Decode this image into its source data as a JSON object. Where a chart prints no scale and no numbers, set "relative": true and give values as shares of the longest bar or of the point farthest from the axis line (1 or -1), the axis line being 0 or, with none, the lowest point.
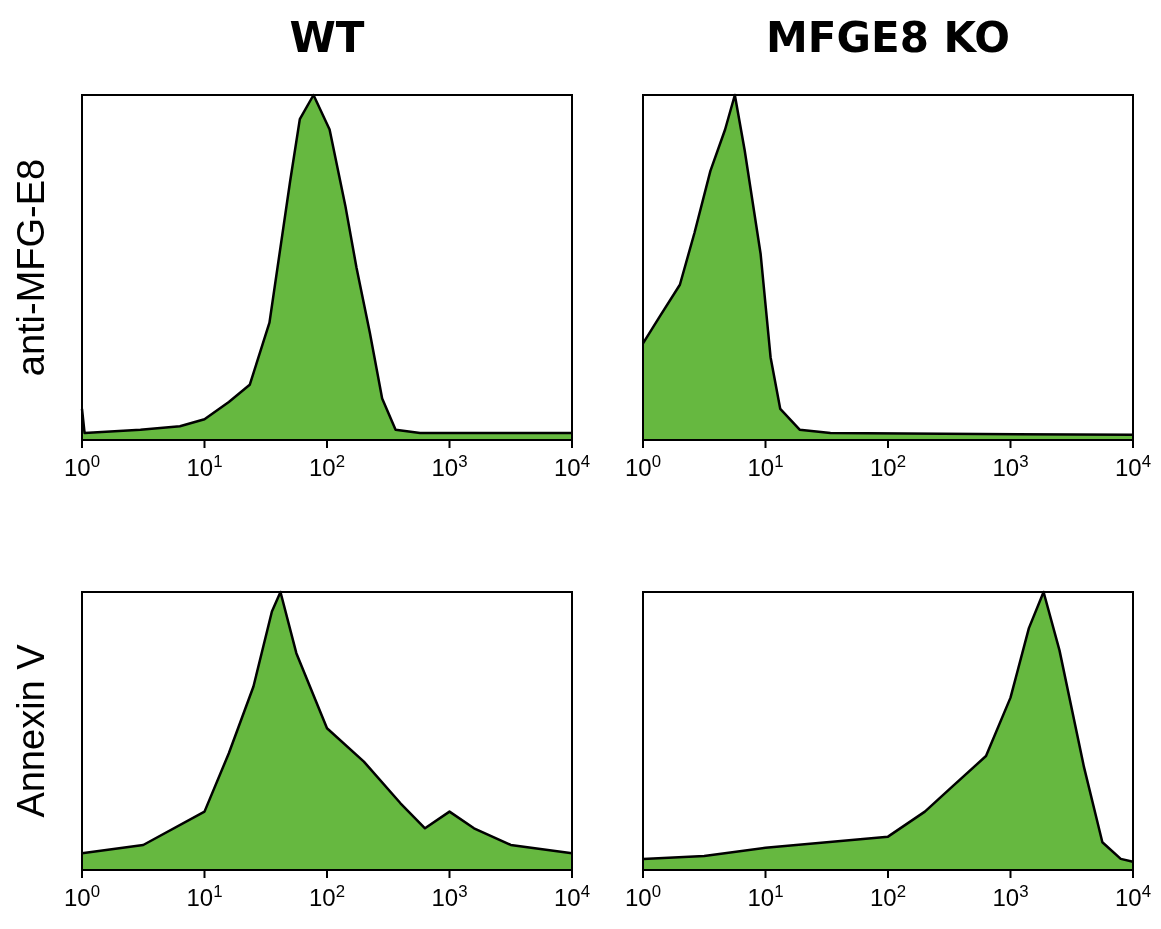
{
  "chart_data": [
    {
      "type": "area",
      "title": "WT",
      "ylabel": "anti-MFG-E8",
      "relative": true,
      "log": "x",
      "tick_labels": "x",
      "xlim": [
        1,
        10000
      ],
      "xticks": [
        {
          "value": 1,
          "label": "10$^{0}$"
        },
        {
          "value": 10,
          "label": "10$^{1}$"
        },
        {
          "value": 100,
          "label": "10$^{2}$"
        },
        {
          "value": 1000,
          "label": "10$^{3}$"
        },
        {
          "value": 10000,
          "label": "10$^{4}$"
        }
      ],
      "series": [
        {
          "color": "#66b840",
          "x": [
            1,
            1.05,
            3,
            6.3,
            10,
            15.8,
            23.4,
            33.9,
            50,
            60,
            77.6,
            105,
            141,
            174,
            224,
            282,
            363,
            575,
            10000
          ],
          "values": [
            0.09,
            0.02,
            0.03,
            0.04,
            0.06,
            0.11,
            0.16,
            0.34,
            0.75,
            0.93,
            1,
            0.9,
            0.68,
            0.5,
            0.31,
            0.12,
            0.03,
            0.02,
            0.02
          ]
        }
      ]
    },
    {
      "type": "area",
      "title": "MFGE8 KO",
      "relative": true,
      "log": "x",
      "tick_labels": "x",
      "xlim": [
        1,
        10000
      ],
      "xticks": [
        {
          "value": 1,
          "label": "10$^{0}$"
        },
        {
          "value": 10,
          "label": "10$^{1}$"
        },
        {
          "value": 100,
          "label": "10$^{2}$"
        },
        {
          "value": 1000,
          "label": "10$^{3}$"
        },
        {
          "value": 10000,
          "label": "10$^{4}$"
        }
      ],
      "series": [
        {
          "color": "#66b840",
          "x": [
            1,
            1.38,
            2,
            2.63,
            3.55,
            4.68,
            5.62,
            6.76,
            9.12,
            11,
            13.2,
            19,
            33.9,
            10000
          ],
          "values": [
            0.28,
            0.36,
            0.45,
            0.6,
            0.78,
            0.9,
            1,
            0.84,
            0.54,
            0.24,
            0.09,
            0.03,
            0.02,
            0.015
          ]
        }
      ]
    },
    {
      "type": "area",
      "ylabel": "Annexin V",
      "relative": true,
      "log": "x",
      "tick_labels": "x",
      "xlim": [
        1,
        10000
      ],
      "xticks": [
        {
          "value": 1,
          "label": "10$^{0}$"
        },
        {
          "value": 10,
          "label": "10$^{1}$"
        },
        {
          "value": 100,
          "label": "10$^{2}$"
        },
        {
          "value": 1000,
          "label": "10$^{3}$"
        },
        {
          "value": 10000,
          "label": "10$^{4}$"
        }
      ],
      "series": [
        {
          "color": "#66b840",
          "x": [
            1,
            3.16,
            10,
            15.8,
            25.1,
            35.5,
            41.7,
            56.2,
            100,
            200,
            398,
            631,
            1000,
            1585,
            3162,
            10000
          ],
          "values": [
            0.06,
            0.09,
            0.21,
            0.42,
            0.66,
            0.93,
            1,
            0.78,
            0.51,
            0.39,
            0.24,
            0.15,
            0.21,
            0.15,
            0.09,
            0.06
          ]
        }
      ]
    },
    {
      "type": "area",
      "relative": true,
      "log": "x",
      "tick_labels": "x",
      "xlim": [
        1,
        10000
      ],
      "xticks": [
        {
          "value": 1,
          "label": "10$^{0}$"
        },
        {
          "value": 10,
          "label": "10$^{1}$"
        },
        {
          "value": 100,
          "label": "10$^{2}$"
        },
        {
          "value": 1000,
          "label": "10$^{3}$"
        },
        {
          "value": 10000,
          "label": "10$^{4}$"
        }
      ],
      "series": [
        {
          "color": "#66b840",
          "x": [
            1,
            3.16,
            10,
            31.6,
            100,
            200,
            316,
            631,
            1000,
            1413,
            1862,
            2512,
            3981,
            5623,
            7943,
            10000
          ],
          "values": [
            0.04,
            0.05,
            0.08,
            0.1,
            0.12,
            0.21,
            0.29,
            0.41,
            0.62,
            0.87,
            1,
            0.79,
            0.37,
            0.1,
            0.04,
            0.03
          ]
        }
      ]
    }
  ]
}
